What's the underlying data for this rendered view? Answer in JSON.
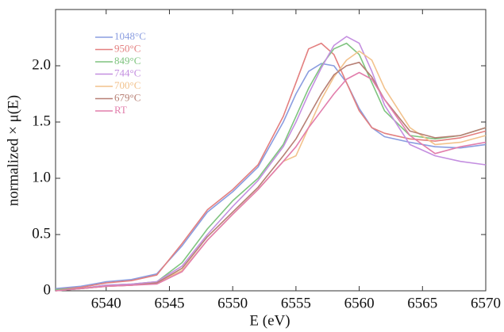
{
  "chart_data": {
    "type": "line",
    "xlabel": "E (eV)",
    "ylabel": "normalized × μ(E)",
    "x": [
      6536,
      6538,
      6540,
      6542,
      6544,
      6546,
      6548,
      6550,
      6552,
      6554,
      6555,
      6556,
      6557,
      6558,
      6559,
      6560,
      6561,
      6562,
      6564,
      6566,
      6568,
      6570
    ],
    "series": [
      {
        "name": "1048°C",
        "color": "#8a9de0",
        "values": [
          0.02,
          0.04,
          0.08,
          0.1,
          0.15,
          0.4,
          0.7,
          0.88,
          1.1,
          1.5,
          1.75,
          1.95,
          2.02,
          2.0,
          1.85,
          1.62,
          1.45,
          1.37,
          1.32,
          1.28,
          1.27,
          1.3
        ]
      },
      {
        "name": "950°C",
        "color": "#e37f7f",
        "values": [
          0.01,
          0.03,
          0.07,
          0.09,
          0.14,
          0.42,
          0.72,
          0.9,
          1.12,
          1.55,
          1.85,
          2.15,
          2.2,
          2.1,
          1.85,
          1.6,
          1.45,
          1.4,
          1.35,
          1.33,
          1.36,
          1.42
        ]
      },
      {
        "name": "849°C",
        "color": "#7fc47f",
        "values": [
          0.01,
          0.02,
          0.05,
          0.06,
          0.08,
          0.25,
          0.55,
          0.8,
          1.0,
          1.3,
          1.55,
          1.8,
          2.0,
          2.15,
          2.2,
          2.1,
          1.85,
          1.6,
          1.38,
          1.35,
          1.38,
          1.45
        ]
      },
      {
        "name": "744°C",
        "color": "#c48fe0",
        "values": [
          0.0,
          0.02,
          0.05,
          0.06,
          0.08,
          0.22,
          0.5,
          0.75,
          0.98,
          1.28,
          1.5,
          1.75,
          1.98,
          2.18,
          2.26,
          2.2,
          1.95,
          1.65,
          1.3,
          1.2,
          1.15,
          1.12
        ]
      },
      {
        "name": "700°C",
        "color": "#f2c28c",
        "values": [
          0.0,
          0.02,
          0.04,
          0.05,
          0.07,
          0.18,
          0.45,
          0.68,
          0.9,
          1.15,
          1.2,
          1.45,
          1.7,
          1.9,
          2.05,
          2.13,
          2.05,
          1.8,
          1.45,
          1.3,
          1.32,
          1.38
        ]
      },
      {
        "name": "679°C",
        "color": "#b77f74",
        "values": [
          0.0,
          0.02,
          0.04,
          0.05,
          0.07,
          0.2,
          0.48,
          0.7,
          0.92,
          1.2,
          1.35,
          1.55,
          1.75,
          1.92,
          2.0,
          2.03,
          1.9,
          1.7,
          1.42,
          1.36,
          1.38,
          1.45
        ]
      },
      {
        "name": "RT",
        "color": "#e27eac",
        "values": [
          0.0,
          0.02,
          0.04,
          0.05,
          0.06,
          0.17,
          0.45,
          0.68,
          0.9,
          1.15,
          1.28,
          1.45,
          1.6,
          1.75,
          1.88,
          1.94,
          1.88,
          1.7,
          1.38,
          1.22,
          1.28,
          1.32
        ]
      }
    ],
    "xlim": [
      6536,
      6570
    ],
    "xticks": [
      6540,
      6545,
      6550,
      6555,
      6560,
      6565,
      6570
    ],
    "ylim": [
      0,
      2.5
    ],
    "yticks": [
      0,
      0.5,
      {
        "value": 1,
        "label": "1.0"
      },
      1.5,
      {
        "value": 2,
        "label": "2.0"
      }
    ],
    "legend": "upper left",
    "grid": false
  }
}
